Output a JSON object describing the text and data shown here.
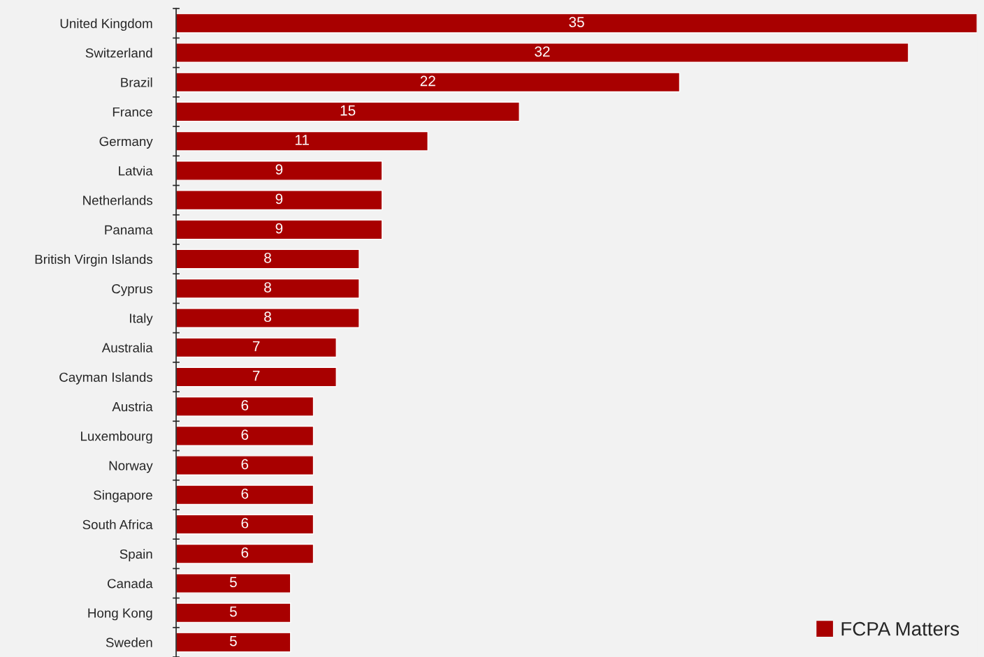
{
  "chart_data": {
    "type": "bar",
    "orientation": "horizontal",
    "categories": [
      "United Kingdom",
      "Switzerland",
      "Brazil",
      "France",
      "Germany",
      "Latvia",
      "Netherlands",
      "Panama",
      "British Virgin Islands",
      "Cyprus",
      "Italy",
      "Australia",
      "Cayman Islands",
      "Austria",
      "Luxembourg",
      "Norway",
      "Singapore",
      "South Africa",
      "Spain",
      "Canada",
      "Hong Kong",
      "Sweden"
    ],
    "series": [
      {
        "name": "FCPA Matters",
        "color": "#a80000",
        "values": [
          35,
          32,
          22,
          15,
          11,
          9,
          9,
          9,
          8,
          8,
          8,
          7,
          7,
          6,
          6,
          6,
          6,
          6,
          6,
          5,
          5,
          5
        ]
      }
    ],
    "xlim": [
      0,
      35
    ],
    "data_labels": true,
    "legend": "bottom right",
    "grid": false
  }
}
